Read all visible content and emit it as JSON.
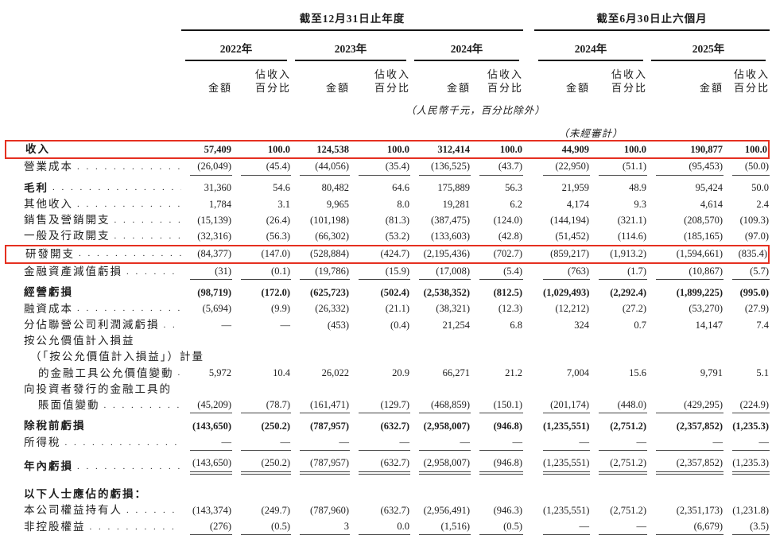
{
  "table": {
    "period_headers": [
      {
        "label": "截至12月31日止年度",
        "span_cols": 6
      },
      {
        "label": "截至6月30日止六個月",
        "span_cols": 4
      }
    ],
    "year_headers": [
      "2022年",
      "2023年",
      "2024年",
      "2024年",
      "2025年"
    ],
    "subheaders": {
      "amount": "金額",
      "pct_line1": "佔收入",
      "pct_line2": "百分比"
    },
    "unit_note": "（人民幣千元，百分比除外）",
    "unaudited_note": "（未經審計）",
    "rows": [
      {
        "label": "收入",
        "bold": true,
        "boxed": true,
        "values": [
          "57,409",
          "100.0",
          "124,538",
          "100.0",
          "312,414",
          "100.0",
          "44,909",
          "100.0",
          "190,877",
          "100.0"
        ]
      },
      {
        "label": "營業成本",
        "dots": true,
        "rule_below": true,
        "values": [
          "(26,049)",
          "(45.4)",
          "(44,056)",
          "(35.4)",
          "(136,525)",
          "(43.7)",
          "(22,950)",
          "(51.1)",
          "(95,453)",
          "(50.0)"
        ]
      },
      {
        "label": "毛利",
        "dots": true,
        "bold_label": true,
        "pad_top": true,
        "values": [
          "31,360",
          "54.6",
          "80,482",
          "64.6",
          "175,889",
          "56.3",
          "21,959",
          "48.9",
          "95,424",
          "50.0"
        ]
      },
      {
        "label": "其他收入",
        "dots": true,
        "values": [
          "1,784",
          "3.1",
          "9,965",
          "8.0",
          "19,281",
          "6.2",
          "4,174",
          "9.3",
          "4,614",
          "2.4"
        ]
      },
      {
        "label": "銷售及營銷開支",
        "dots": true,
        "values": [
          "(15,139)",
          "(26.4)",
          "(101,198)",
          "(81.3)",
          "(387,475)",
          "(124.0)",
          "(144,194)",
          "(321.1)",
          "(208,570)",
          "(109.3)"
        ]
      },
      {
        "label": "一般及行政開支",
        "dots": true,
        "values": [
          "(32,316)",
          "(56.3)",
          "(66,302)",
          "(53.2)",
          "(133,603)",
          "(42.8)",
          "(51,452)",
          "(114.6)",
          "(185,165)",
          "(97.0)"
        ]
      },
      {
        "label": "研發開支",
        "dots": true,
        "boxed": true,
        "values": [
          "(84,377)",
          "(147.0)",
          "(528,884)",
          "(424.7)",
          "(2,195,436)",
          "(702.7)",
          "(859,217)",
          "(1,913.2)",
          "(1,594,661)",
          "(835.4)"
        ]
      },
      {
        "label": "金融資產減值虧損",
        "dots": true,
        "rule_below": true,
        "values": [
          "(31)",
          "(0.1)",
          "(19,786)",
          "(15.9)",
          "(17,008)",
          "(5.4)",
          "(763)",
          "(1.7)",
          "(10,867)",
          "(5.7)"
        ]
      },
      {
        "label": "經營虧損",
        "bold": true,
        "pad_top": true,
        "values": [
          "(98,719)",
          "(172.0)",
          "(625,723)",
          "(502.4)",
          "(2,538,352)",
          "(812.5)",
          "(1,029,493)",
          "(2,292.4)",
          "(1,899,225)",
          "(995.0)"
        ]
      },
      {
        "label": "融資成本",
        "dots": true,
        "values": [
          "(5,694)",
          "(9.9)",
          "(26,332)",
          "(21.1)",
          "(38,321)",
          "(12.3)",
          "(12,212)",
          "(27.2)",
          "(53,270)",
          "(27.9)"
        ]
      },
      {
        "label": "分佔聯營公司利潤減虧損",
        "dots": true,
        "values": [
          "—",
          "—",
          "(453)",
          "(0.4)",
          "21,254",
          "6.8",
          "324",
          "0.7",
          "14,147",
          "7.4"
        ]
      },
      {
        "label_lines": [
          [
            "按公允價值計入損益",
            0
          ],
          [
            "（「按公允價值計入損益」）計量",
            1
          ],
          [
            "的金融工具公允價值變動",
            2
          ]
        ],
        "dots": true,
        "values": [
          "5,972",
          "10.4",
          "26,022",
          "20.9",
          "66,271",
          "21.2",
          "7,004",
          "15.6",
          "9,791",
          "5.1"
        ]
      },
      {
        "label_lines": [
          [
            "向投資者發行的金融工具的",
            0
          ],
          [
            "賬面值變動",
            2
          ]
        ],
        "dots": true,
        "rule_below": true,
        "values": [
          "(45,209)",
          "(78.7)",
          "(161,471)",
          "(129.7)",
          "(468,859)",
          "(150.1)",
          "(201,174)",
          "(448.0)",
          "(429,295)",
          "(224.9)"
        ]
      },
      {
        "label": "除稅前虧損",
        "bold": true,
        "pad_top": true,
        "values": [
          "(143,650)",
          "(250.2)",
          "(787,957)",
          "(632.7)",
          "(2,958,007)",
          "(946.8)",
          "(1,235,551)",
          "(2,751.2)",
          "(2,357,852)",
          "(1,235.3)"
        ]
      },
      {
        "label": "所得稅",
        "dots": true,
        "rule_below": true,
        "values": [
          "—",
          "—",
          "—",
          "—",
          "—",
          "—",
          "—",
          "—",
          "—",
          "—"
        ]
      },
      {
        "label": "年內虧損",
        "dots": true,
        "bold_label": true,
        "pad_top": true,
        "double_rule_below": true,
        "values": [
          "(143,650)",
          "(250.2)",
          "(787,957)",
          "(632.7)",
          "(2,958,007)",
          "(946.8)",
          "(1,235,551)",
          "(2,751.2)",
          "(2,357,852)",
          "(1,235.3)"
        ]
      },
      {
        "label": "以下人士應佔的虧損：",
        "bold_label": true,
        "pad_top_lg": true,
        "values": []
      },
      {
        "label": "本公司權益持有人",
        "dots": true,
        "values": [
          "(143,374)",
          "(249.7)",
          "(787,960)",
          "(632.7)",
          "(2,956,491)",
          "(946.3)",
          "(1,235,551)",
          "(2,751.2)",
          "(2,351,173)",
          "(1,231.8)"
        ]
      },
      {
        "label": "非控股權益",
        "dots": true,
        "rule_below": true,
        "values": [
          "(276)",
          "(0.5)",
          "3",
          "0.0",
          "(1,516)",
          "(0.5)",
          "—",
          "—",
          "(6,679)",
          "(3.5)"
        ]
      }
    ]
  },
  "colors": {
    "highlight_box": "#e53020",
    "text": "#1d1d1d",
    "rule": "#151515"
  }
}
